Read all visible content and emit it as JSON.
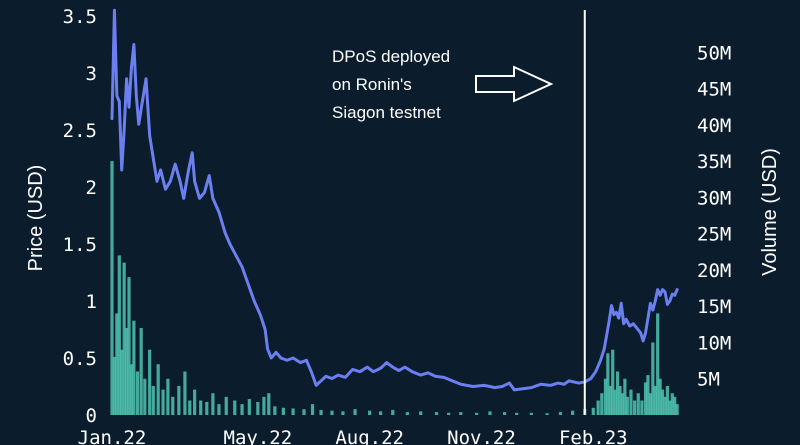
{
  "chart_data": {
    "type": "line",
    "title": "",
    "ylabel": "Price (USD)",
    "ylabel_right": "Volume (USD)",
    "ylim": [
      0,
      3.5
    ],
    "ylim_right": [
      0,
      55000000
    ],
    "xlim": [
      "2022-01-01",
      "2023-04-15"
    ],
    "yticks": [
      "0",
      "0.5",
      "1",
      "1.5",
      "2",
      "2.5",
      "3",
      "3.5"
    ],
    "yticks_right": [
      "5M",
      "10M",
      "15M",
      "20M",
      "25M",
      "30M",
      "35M",
      "40M",
      "45M",
      "50M"
    ],
    "xticks": [
      {
        "label": "Jan.22",
        "date": "2022-01-01"
      },
      {
        "label": "May.22",
        "date": "2022-05-01"
      },
      {
        "label": "Aug.22",
        "date": "2022-08-01"
      },
      {
        "label": "Nov.22",
        "date": "2022-11-01"
      },
      {
        "label": "Feb.23",
        "date": "2023-02-01"
      }
    ],
    "price_color": "#6b7ff0",
    "volume_color": "#4fc4b0",
    "price_series": [
      [
        "2022-01-01",
        2.6
      ],
      [
        "2022-01-03",
        3.55
      ],
      [
        "2022-01-05",
        2.8
      ],
      [
        "2022-01-07",
        2.75
      ],
      [
        "2022-01-09",
        2.15
      ],
      [
        "2022-01-11",
        2.5
      ],
      [
        "2022-01-13",
        2.95
      ],
      [
        "2022-01-15",
        2.7
      ],
      [
        "2022-01-17",
        3.05
      ],
      [
        "2022-01-19",
        3.25
      ],
      [
        "2022-01-21",
        2.8
      ],
      [
        "2022-01-23",
        2.55
      ],
      [
        "2022-01-26",
        2.75
      ],
      [
        "2022-01-29",
        2.95
      ],
      [
        "2022-02-01",
        2.45
      ],
      [
        "2022-02-04",
        2.25
      ],
      [
        "2022-02-07",
        2.05
      ],
      [
        "2022-02-10",
        2.15
      ],
      [
        "2022-02-14",
        1.98
      ],
      [
        "2022-02-18",
        2.05
      ],
      [
        "2022-02-22",
        2.2
      ],
      [
        "2022-02-26",
        2.05
      ],
      [
        "2022-03-01",
        1.9
      ],
      [
        "2022-03-05",
        2.15
      ],
      [
        "2022-03-08",
        2.3
      ],
      [
        "2022-03-10",
        2.05
      ],
      [
        "2022-03-14",
        1.9
      ],
      [
        "2022-03-18",
        1.95
      ],
      [
        "2022-03-22",
        2.1
      ],
      [
        "2022-03-25",
        1.9
      ],
      [
        "2022-03-30",
        1.78
      ],
      [
        "2022-04-04",
        1.6
      ],
      [
        "2022-04-08",
        1.5
      ],
      [
        "2022-04-13",
        1.4
      ],
      [
        "2022-04-18",
        1.3
      ],
      [
        "2022-04-23",
        1.15
      ],
      [
        "2022-04-28",
        1.0
      ],
      [
        "2022-05-03",
        0.88
      ],
      [
        "2022-05-07",
        0.75
      ],
      [
        "2022-05-09",
        0.58
      ],
      [
        "2022-05-12",
        0.5
      ],
      [
        "2022-05-16",
        0.55
      ],
      [
        "2022-05-20",
        0.5
      ],
      [
        "2022-05-25",
        0.48
      ],
      [
        "2022-05-30",
        0.5
      ],
      [
        "2022-06-05",
        0.46
      ],
      [
        "2022-06-10",
        0.48
      ],
      [
        "2022-06-14",
        0.38
      ],
      [
        "2022-06-18",
        0.26
      ],
      [
        "2022-06-22",
        0.3
      ],
      [
        "2022-06-26",
        0.34
      ],
      [
        "2022-07-01",
        0.32
      ],
      [
        "2022-07-06",
        0.35
      ],
      [
        "2022-07-12",
        0.33
      ],
      [
        "2022-07-18",
        0.4
      ],
      [
        "2022-07-24",
        0.38
      ],
      [
        "2022-07-30",
        0.42
      ],
      [
        "2022-08-04",
        0.38
      ],
      [
        "2022-08-10",
        0.41
      ],
      [
        "2022-08-15",
        0.46
      ],
      [
        "2022-08-20",
        0.42
      ],
      [
        "2022-08-25",
        0.39
      ],
      [
        "2022-08-30",
        0.42
      ],
      [
        "2022-09-05",
        0.38
      ],
      [
        "2022-09-12",
        0.35
      ],
      [
        "2022-09-18",
        0.37
      ],
      [
        "2022-09-24",
        0.34
      ],
      [
        "2022-10-01",
        0.33
      ],
      [
        "2022-10-08",
        0.3
      ],
      [
        "2022-10-15",
        0.27
      ],
      [
        "2022-10-25",
        0.25
      ],
      [
        "2022-11-03",
        0.26
      ],
      [
        "2022-11-08",
        0.25
      ],
      [
        "2022-11-12",
        0.24
      ],
      [
        "2022-11-18",
        0.25
      ],
      [
        "2022-11-24",
        0.28
      ],
      [
        "2022-11-28",
        0.22
      ],
      [
        "2022-12-05",
        0.23
      ],
      [
        "2022-12-12",
        0.24
      ],
      [
        "2022-12-20",
        0.27
      ],
      [
        "2022-12-28",
        0.26
      ],
      [
        "2023-01-03",
        0.28
      ],
      [
        "2023-01-08",
        0.27
      ],
      [
        "2023-01-12",
        0.3
      ],
      [
        "2023-01-16",
        0.29
      ],
      [
        "2023-01-20",
        0.28
      ],
      [
        "2023-01-25",
        0.29
      ],
      [
        "2023-01-30",
        0.32
      ],
      [
        "2023-02-03",
        0.38
      ],
      [
        "2023-02-07",
        0.48
      ],
      [
        "2023-02-10",
        0.58
      ],
      [
        "2023-02-12",
        0.7
      ],
      [
        "2023-02-14",
        0.82
      ],
      [
        "2023-02-16",
        0.96
      ],
      [
        "2023-02-18",
        0.88
      ],
      [
        "2023-02-20",
        0.9
      ],
      [
        "2023-02-22",
        0.85
      ],
      [
        "2023-02-24",
        0.98
      ],
      [
        "2023-02-26",
        0.8
      ],
      [
        "2023-02-28",
        0.84
      ],
      [
        "2023-03-03",
        0.78
      ],
      [
        "2023-03-06",
        0.8
      ],
      [
        "2023-03-09",
        0.76
      ],
      [
        "2023-03-12",
        0.72
      ],
      [
        "2023-03-14",
        0.65
      ],
      [
        "2023-03-16",
        0.72
      ],
      [
        "2023-03-18",
        0.85
      ],
      [
        "2023-03-20",
        0.98
      ],
      [
        "2023-03-22",
        0.92
      ],
      [
        "2023-03-24",
        1.0
      ],
      [
        "2023-03-26",
        1.1
      ],
      [
        "2023-03-28",
        1.05
      ],
      [
        "2023-03-30",
        1.1
      ],
      [
        "2023-04-01",
        1.08
      ],
      [
        "2023-04-03",
        0.97
      ],
      [
        "2023-04-05",
        1.0
      ],
      [
        "2023-04-07",
        1.06
      ],
      [
        "2023-04-09",
        1.05
      ],
      [
        "2023-04-11",
        1.1
      ]
    ],
    "volume_series": [
      [
        "2022-01-01",
        35000000
      ],
      [
        "2022-01-03",
        8000000
      ],
      [
        "2022-01-05",
        14000000
      ],
      [
        "2022-01-07",
        22000000
      ],
      [
        "2022-01-09",
        9000000
      ],
      [
        "2022-01-11",
        21000000
      ],
      [
        "2022-01-13",
        12000000
      ],
      [
        "2022-01-15",
        19000000
      ],
      [
        "2022-01-17",
        7000000
      ],
      [
        "2022-01-19",
        13000000
      ],
      [
        "2022-01-22",
        6000000
      ],
      [
        "2022-01-25",
        12000000
      ],
      [
        "2022-01-28",
        5000000
      ],
      [
        "2022-02-01",
        9000000
      ],
      [
        "2022-02-04",
        4000000
      ],
      [
        "2022-02-08",
        7000000
      ],
      [
        "2022-02-12",
        3500000
      ],
      [
        "2022-02-16",
        5000000
      ],
      [
        "2022-02-20",
        2500000
      ],
      [
        "2022-02-25",
        4000000
      ],
      [
        "2022-03-02",
        6000000
      ],
      [
        "2022-03-06",
        2000000
      ],
      [
        "2022-03-10",
        3500000
      ],
      [
        "2022-03-15",
        2000000
      ],
      [
        "2022-03-20",
        1800000
      ],
      [
        "2022-03-25",
        3000000
      ],
      [
        "2022-03-30",
        1500000
      ],
      [
        "2022-04-05",
        2500000
      ],
      [
        "2022-04-12",
        2000000
      ],
      [
        "2022-04-18",
        1500000
      ],
      [
        "2022-04-24",
        2200000
      ],
      [
        "2022-05-01",
        1800000
      ],
      [
        "2022-05-06",
        2500000
      ],
      [
        "2022-05-10",
        3000000
      ],
      [
        "2022-05-15",
        1200000
      ],
      [
        "2022-05-22",
        1000000
      ],
      [
        "2022-05-30",
        900000
      ],
      [
        "2022-06-08",
        800000
      ],
      [
        "2022-06-15",
        1500000
      ],
      [
        "2022-06-22",
        700000
      ],
      [
        "2022-07-01",
        600000
      ],
      [
        "2022-07-10",
        500000
      ],
      [
        "2022-07-20",
        800000
      ],
      [
        "2022-08-01",
        600000
      ],
      [
        "2022-08-10",
        500000
      ],
      [
        "2022-08-20",
        700000
      ],
      [
        "2022-09-01",
        400000
      ],
      [
        "2022-09-12",
        500000
      ],
      [
        "2022-09-25",
        400000
      ],
      [
        "2022-10-05",
        300000
      ],
      [
        "2022-10-15",
        400000
      ],
      [
        "2022-10-28",
        300000
      ],
      [
        "2022-11-08",
        500000
      ],
      [
        "2022-11-20",
        400000
      ],
      [
        "2022-11-30",
        300000
      ],
      [
        "2022-12-12",
        300000
      ],
      [
        "2022-12-25",
        250000
      ],
      [
        "2023-01-05",
        400000
      ],
      [
        "2023-01-15",
        600000
      ],
      [
        "2023-01-25",
        800000
      ],
      [
        "2023-02-01",
        1000000
      ],
      [
        "2023-02-05",
        2000000
      ],
      [
        "2023-02-08",
        3000000
      ],
      [
        "2023-02-11",
        5000000
      ],
      [
        "2023-02-13",
        8500000
      ],
      [
        "2023-02-15",
        4000000
      ],
      [
        "2023-02-17",
        9000000
      ],
      [
        "2023-02-19",
        3500000
      ],
      [
        "2023-02-21",
        6000000
      ],
      [
        "2023-02-23",
        4000000
      ],
      [
        "2023-02-25",
        3000000
      ],
      [
        "2023-02-27",
        5000000
      ],
      [
        "2023-03-01",
        2500000
      ],
      [
        "2023-03-04",
        3500000
      ],
      [
        "2023-03-07",
        2000000
      ],
      [
        "2023-03-10",
        3000000
      ],
      [
        "2023-03-13",
        2000000
      ],
      [
        "2023-03-16",
        4500000
      ],
      [
        "2023-03-18",
        5500000
      ],
      [
        "2023-03-20",
        3000000
      ],
      [
        "2023-03-22",
        10000000
      ],
      [
        "2023-03-24",
        4000000
      ],
      [
        "2023-03-26",
        14000000
      ],
      [
        "2023-03-28",
        5000000
      ],
      [
        "2023-03-30",
        3500000
      ],
      [
        "2023-04-01",
        2500000
      ],
      [
        "2023-04-03",
        4000000
      ],
      [
        "2023-04-05",
        2000000
      ],
      [
        "2023-04-07",
        3000000
      ],
      [
        "2023-04-09",
        2500000
      ],
      [
        "2023-04-11",
        1500000
      ]
    ],
    "marker_date": "2023-01-25",
    "annotation": [
      "DPoS deployed",
      "on Ronin's",
      "Siagon testnet"
    ]
  }
}
